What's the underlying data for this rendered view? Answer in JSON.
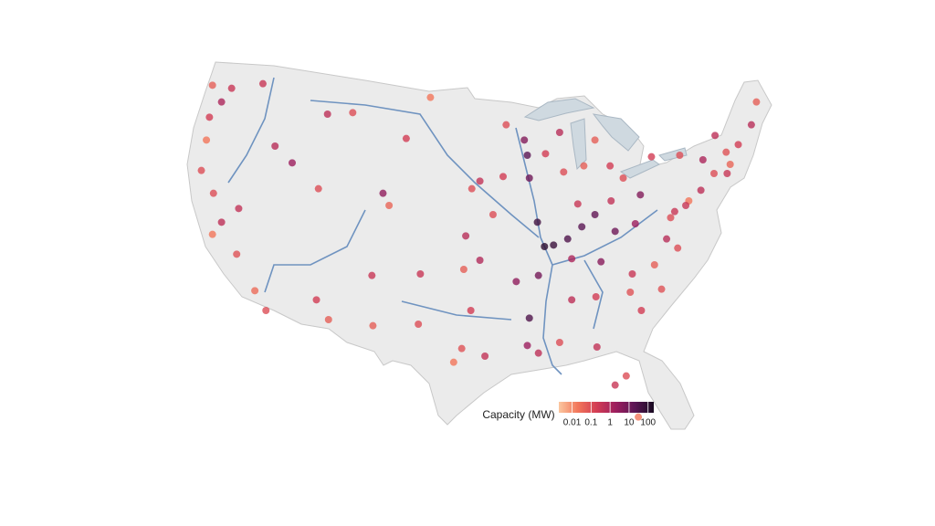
{
  "chart_data": {
    "type": "map",
    "legend_title": "Capacity (MW)",
    "log_scale": true,
    "clim": [
      0.002,
      200
    ],
    "cticks": [
      0.01,
      0.1,
      1,
      10,
      100
    ],
    "colorscale": [
      "#fbc7a0",
      "#f2765a",
      "#d23c54",
      "#9c1e5e",
      "#5a1654",
      "#190b22"
    ],
    "lon": [
      -122.4,
      -122.7,
      -123,
      -121.5,
      -117.4,
      -122.3,
      -121.5,
      -122.4,
      -120,
      -118.2,
      -117.1,
      -119.8,
      -116.2,
      -114.5,
      -111.9,
      -112.1,
      -110.9,
      -106.6,
      -104.9,
      -105.5,
      -108.5,
      -111,
      -100.8,
      -103.2,
      -96.7,
      -97.3,
      -97.5,
      -101.8,
      -97.7,
      -95.4,
      -98.5,
      -96.8,
      -93.3,
      -91.5,
      -91.2,
      -91,
      -90.2,
      -89.5,
      -90.1,
      -91,
      -91.2,
      -90.1,
      -87.6,
      -86.2,
      -85.6,
      -83,
      -84.5,
      -82.9,
      -81.7,
      -80,
      -85.8,
      -86.8,
      -84.4,
      -86.8,
      -81,
      -80.8,
      -78.6,
      -77.4,
      -77,
      -76.6,
      -75.2,
      -74,
      -73.8,
      -76.1,
      -78.9,
      -71.1,
      -72.7,
      -71.4,
      -72.6,
      -71.5,
      -70.3,
      -69,
      -68.5,
      -81.4,
      -82.5,
      -80.2,
      -84.3,
      -88,
      -89.4,
      -88,
      -84.5,
      -92.3,
      -94.6,
      -93.6,
      -95.9,
      -95.9,
      -120.5,
      -123.5,
      -106.5,
      -102,
      -79.9,
      -77.9,
      -76.3,
      -75.5,
      -80.5,
      -82.5,
      -83.9,
      -87.2,
      -88.6
    ],
    "lat": [
      47.6,
      45.5,
      44,
      46.5,
      47.7,
      40.5,
      38.6,
      37.8,
      36.5,
      34.1,
      32.8,
      39.5,
      43.6,
      42.5,
      40.8,
      33.5,
      32.2,
      35.1,
      39.7,
      40.5,
      45.8,
      45.7,
      46.8,
      44.1,
      40.8,
      37.7,
      35.5,
      35.2,
      30.3,
      29.8,
      29.4,
      32.8,
      45,
      44,
      43,
      41.5,
      38.6,
      37,
      35.1,
      32.3,
      30.5,
      30,
      41.9,
      39.8,
      42.3,
      42.3,
      39.1,
      40,
      41.5,
      40.4,
      38.3,
      36.2,
      33.7,
      33.5,
      34,
      35.2,
      35.8,
      37.5,
      38.9,
      39.3,
      40,
      40.7,
      42.7,
      43,
      42.9,
      42.4,
      41.8,
      41.8,
      44.3,
      43.2,
      43.7,
      45,
      46.5,
      28.5,
      27.9,
      25.8,
      30.4,
      30.7,
      43.1,
      44.5,
      44,
      34.7,
      39.1,
      41.6,
      41.3,
      36.1,
      47.4,
      42,
      31.8,
      31.9,
      32.8,
      34.2,
      36.9,
      39.7,
      38.5,
      38,
      36,
      37.5,
      37.1
    ],
    "capacity": [
      0.05,
      0.2,
      0.02,
      1,
      0.3,
      0.1,
      0.5,
      0.02,
      0.08,
      0.03,
      0.1,
      0.4,
      0.6,
      2,
      0.1,
      0.2,
      0.05,
      0.3,
      0.04,
      3,
      0.1,
      0.5,
      0.02,
      0.2,
      0.1,
      0.6,
      0.05,
      0.3,
      0.08,
      0.4,
      0.02,
      0.2,
      0.1,
      5,
      20,
      10,
      50,
      100,
      8,
      30,
      2,
      0.5,
      0.1,
      0.3,
      0.05,
      0.2,
      15,
      0.4,
      0.1,
      5,
      20,
      1,
      0.2,
      0.5,
      0.08,
      0.3,
      0.05,
      0.6,
      0.1,
      0.3,
      0.02,
      0.5,
      1,
      0.1,
      0.2,
      0.04,
      0.1,
      0.3,
      0.5,
      0.08,
      0.2,
      0.6,
      0.05,
      0.1,
      0.3,
      0.02,
      0.4,
      0.1,
      0.2,
      0.6,
      0.05,
      3,
      0.1,
      0.2,
      0.4,
      0.8,
      0.3,
      0.1,
      0.05,
      0.1,
      0.2,
      0.08,
      0.1,
      0.3,
      2,
      10,
      4,
      30,
      60
    ]
  }
}
